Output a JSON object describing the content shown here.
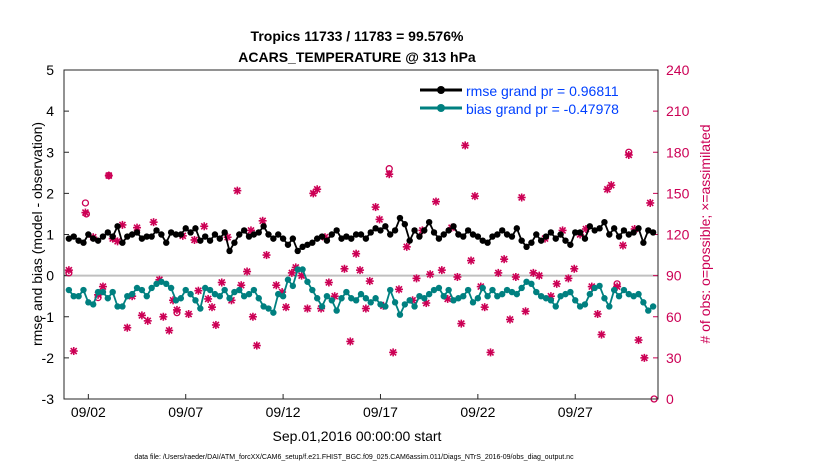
{
  "chart_data": {
    "type": "line",
    "title": "Tropics 11733 / 11783 = 99.576%",
    "subtitle": "ACARS_TEMPERATURE @ 313 hPa",
    "xlabel": "Sep.01,2016 00:00:00 start",
    "ylabel": "rmse and bias (model - observation)",
    "ylabel_right": "# of obs: o=possible; ×=assimilated",
    "footer": "data file: /Users/raeder/DAI/ATM_forcXX/CAM6_setup/f.e21.FHIST_BGC.f09_025.CAM6assim.011/Diags_NTrS_2016-09/obs_diag_output.nc",
    "xlim": [
      0.5,
      31.0
    ],
    "ylim": [
      -3,
      5
    ],
    "ylim_right": [
      0,
      240
    ],
    "x_tick_values": [
      1.75,
      6.75,
      11.75,
      16.75,
      21.75,
      26.75
    ],
    "x_tick_labels": [
      "09/02",
      "09/07",
      "09/12",
      "09/17",
      "09/22",
      "09/27"
    ],
    "y_ticks": [
      -3,
      -2,
      -1,
      0,
      1,
      2,
      3,
      4,
      5
    ],
    "y_ticks_right": [
      0,
      30,
      60,
      90,
      120,
      150,
      180,
      210,
      240
    ],
    "legend": [
      {
        "label": "rmse grand pr = 0.96811",
        "color": "#000000"
      },
      {
        "label": "bias grand pr = -0.47978",
        "color": "#008080"
      }
    ],
    "colors": {
      "rmse": "#000000",
      "bias": "#008080",
      "counts": "#cc0055",
      "zero_line": "#c0c0c0",
      "legend_text": "#0040ff"
    },
    "x": [
      0.75,
      1.0,
      1.25,
      1.5,
      1.75,
      2.0,
      2.25,
      2.5,
      2.75,
      3.0,
      3.25,
      3.5,
      3.75,
      4.0,
      4.25,
      4.5,
      4.75,
      5.0,
      5.25,
      5.5,
      5.75,
      6.0,
      6.25,
      6.5,
      6.75,
      7.0,
      7.25,
      7.5,
      7.75,
      8.0,
      8.25,
      8.5,
      8.75,
      9.0,
      9.25,
      9.5,
      9.75,
      10.0,
      10.25,
      10.5,
      10.75,
      11.0,
      11.25,
      11.5,
      11.75,
      12.0,
      12.25,
      12.5,
      12.75,
      13.0,
      13.25,
      13.5,
      13.75,
      14.0,
      14.25,
      14.5,
      14.75,
      15.0,
      15.25,
      15.5,
      15.75,
      16.0,
      16.25,
      16.5,
      16.75,
      17.0,
      17.25,
      17.5,
      17.75,
      18.0,
      18.25,
      18.5,
      18.75,
      19.0,
      19.25,
      19.5,
      19.75,
      20.0,
      20.25,
      20.5,
      20.75,
      21.0,
      21.25,
      21.5,
      21.75,
      22.0,
      22.25,
      22.5,
      22.75,
      23.0,
      23.25,
      23.5,
      23.75,
      24.0,
      24.25,
      24.5,
      24.75,
      25.0,
      25.25,
      25.5,
      25.75,
      26.0,
      26.25,
      26.5,
      26.75,
      27.0,
      27.25,
      27.5,
      27.75,
      28.0,
      28.25,
      28.5,
      28.75,
      29.0,
      29.25,
      29.5,
      29.75,
      30.0,
      30.25,
      30.5,
      30.75
    ],
    "series": [
      {
        "name": "rmse",
        "values": [
          0.9,
          0.95,
          0.85,
          0.8,
          1.0,
          0.9,
          0.85,
          0.95,
          1.05,
          0.95,
          1.2,
          0.8,
          0.95,
          1.0,
          1.05,
          0.9,
          0.95,
          0.95,
          1.1,
          1.0,
          0.8,
          1.05,
          1.0,
          1.0,
          1.15,
          1.05,
          1.15,
          0.85,
          0.95,
          0.85,
          1.0,
          0.9,
          1.05,
          0.6,
          0.8,
          1.0,
          1.1,
          0.95,
          1.0,
          1.05,
          1.2,
          1.0,
          0.9,
          1.0,
          0.9,
          0.75,
          0.9,
          0.6,
          0.7,
          0.75,
          0.8,
          0.9,
          0.95,
          0.85,
          1.0,
          1.1,
          0.9,
          0.95,
          0.9,
          1.0,
          1.0,
          0.9,
          1.05,
          1.15,
          1.1,
          1.2,
          1.0,
          1.1,
          1.4,
          1.25,
          0.85,
          1.1,
          0.95,
          1.1,
          1.3,
          1.05,
          0.9,
          1.0,
          1.1,
          1.2,
          1.0,
          0.95,
          1.1,
          1.0,
          0.95,
          0.85,
          0.8,
          0.95,
          1.0,
          1.1,
          1.0,
          0.95,
          1.15,
          0.85,
          0.7,
          0.8,
          1.0,
          0.85,
          0.95,
          1.05,
          0.9,
          1.0,
          0.85,
          0.75,
          1.05,
          1.05,
          0.9,
          1.2,
          1.1,
          1.15,
          1.3,
          1.0,
          1.15,
          0.95,
          1.1,
          1.0,
          1.05,
          1.15,
          0.8,
          1.1,
          1.05
        ]
      },
      {
        "name": "bias",
        "values": [
          -0.35,
          -0.5,
          -0.5,
          -0.35,
          -0.65,
          -0.7,
          -0.4,
          -0.4,
          -0.55,
          -0.4,
          -0.75,
          -0.75,
          -0.5,
          -0.45,
          -0.3,
          -0.35,
          -0.5,
          -0.3,
          -0.2,
          -0.15,
          -0.2,
          -0.3,
          -0.6,
          -0.55,
          -0.35,
          -0.45,
          -0.6,
          -0.8,
          -0.3,
          -0.35,
          -0.45,
          -0.5,
          -0.35,
          -0.55,
          -0.4,
          -0.35,
          -0.5,
          -0.45,
          -0.35,
          -0.55,
          -0.75,
          -0.8,
          -0.9,
          -0.45,
          -0.5,
          -0.1,
          -0.25,
          0.15,
          0.15,
          -0.15,
          -0.35,
          -0.55,
          -0.75,
          -0.5,
          -0.6,
          -0.85,
          -0.55,
          -0.4,
          -0.55,
          -0.6,
          -0.45,
          -0.55,
          -0.65,
          -0.55,
          -0.7,
          -0.75,
          -0.35,
          -0.65,
          -0.95,
          -0.7,
          -0.6,
          -0.75,
          -0.5,
          -0.55,
          -0.45,
          -0.35,
          -0.3,
          -0.5,
          -0.35,
          -0.6,
          -0.55,
          -0.5,
          -0.35,
          -0.65,
          -0.55,
          -0.3,
          -0.5,
          -0.35,
          -0.5,
          -0.45,
          -0.35,
          -0.4,
          -0.45,
          -0.3,
          -0.15,
          -0.2,
          -0.4,
          -0.5,
          -0.55,
          -0.6,
          -0.75,
          -0.5,
          -0.45,
          -0.4,
          -0.6,
          -0.75,
          -0.7,
          -0.45,
          -0.3,
          -0.25,
          -0.55,
          -0.75,
          -0.35,
          -0.5,
          -0.35,
          -0.45,
          -0.5,
          -0.45,
          -0.65,
          -0.85,
          -0.75
        ]
      }
    ],
    "obs_possible": [
      {
        "x": 0.75,
        "y": 92
      },
      {
        "x": 1.6,
        "y": 143
      },
      {
        "x": 1.65,
        "y": 135
      },
      {
        "x": 2.25,
        "y": 74
      },
      {
        "x": 2.8,
        "y": 163
      },
      {
        "x": 6.3,
        "y": 63
      },
      {
        "x": 17.2,
        "y": 168
      },
      {
        "x": 29.5,
        "y": 180
      },
      {
        "x": 28.9,
        "y": 84
      },
      {
        "x": 30.8,
        "y": 0
      }
    ],
    "obs_assimilated": [
      {
        "x": 0.75,
        "y": 94
      },
      {
        "x": 1.0,
        "y": 35
      },
      {
        "x": 1.6,
        "y": 136
      },
      {
        "x": 2.0,
        "y": 118
      },
      {
        "x": 2.25,
        "y": 76
      },
      {
        "x": 2.5,
        "y": 82
      },
      {
        "x": 2.8,
        "y": 163
      },
      {
        "x": 3.0,
        "y": 117
      },
      {
        "x": 3.25,
        "y": 115
      },
      {
        "x": 3.5,
        "y": 127
      },
      {
        "x": 3.75,
        "y": 52
      },
      {
        "x": 4.0,
        "y": 75
      },
      {
        "x": 4.25,
        "y": 125
      },
      {
        "x": 4.5,
        "y": 61
      },
      {
        "x": 4.8,
        "y": 57
      },
      {
        "x": 5.1,
        "y": 129
      },
      {
        "x": 5.4,
        "y": 87
      },
      {
        "x": 5.6,
        "y": 60
      },
      {
        "x": 5.9,
        "y": 50
      },
      {
        "x": 6.1,
        "y": 72
      },
      {
        "x": 6.3,
        "y": 65
      },
      {
        "x": 6.6,
        "y": 119
      },
      {
        "x": 6.9,
        "y": 62
      },
      {
        "x": 7.2,
        "y": 116
      },
      {
        "x": 7.4,
        "y": 79
      },
      {
        "x": 7.7,
        "y": 126
      },
      {
        "x": 7.9,
        "y": 73
      },
      {
        "x": 8.1,
        "y": 67
      },
      {
        "x": 8.3,
        "y": 54
      },
      {
        "x": 8.6,
        "y": 85
      },
      {
        "x": 8.9,
        "y": 118
      },
      {
        "x": 9.1,
        "y": 72
      },
      {
        "x": 9.4,
        "y": 152
      },
      {
        "x": 9.6,
        "y": 83
      },
      {
        "x": 9.9,
        "y": 93
      },
      {
        "x": 10.1,
        "y": 123
      },
      {
        "x": 10.2,
        "y": 60
      },
      {
        "x": 10.4,
        "y": 39
      },
      {
        "x": 10.7,
        "y": 130
      },
      {
        "x": 10.9,
        "y": 105
      },
      {
        "x": 11.4,
        "y": 83
      },
      {
        "x": 11.7,
        "y": 78
      },
      {
        "x": 11.9,
        "y": 67
      },
      {
        "x": 12.2,
        "y": 92
      },
      {
        "x": 12.4,
        "y": 96
      },
      {
        "x": 12.7,
        "y": 90
      },
      {
        "x": 13.0,
        "y": 66
      },
      {
        "x": 13.3,
        "y": 150
      },
      {
        "x": 13.5,
        "y": 153
      },
      {
        "x": 13.7,
        "y": 66
      },
      {
        "x": 13.9,
        "y": 118
      },
      {
        "x": 14.1,
        "y": 85
      },
      {
        "x": 14.4,
        "y": 75
      },
      {
        "x": 14.9,
        "y": 95
      },
      {
        "x": 15.2,
        "y": 42
      },
      {
        "x": 15.5,
        "y": 106
      },
      {
        "x": 15.7,
        "y": 94
      },
      {
        "x": 16.0,
        "y": 66
      },
      {
        "x": 16.2,
        "y": 86
      },
      {
        "x": 16.5,
        "y": 140
      },
      {
        "x": 16.7,
        "y": 131
      },
      {
        "x": 16.9,
        "y": 68
      },
      {
        "x": 17.2,
        "y": 164
      },
      {
        "x": 17.4,
        "y": 34
      },
      {
        "x": 17.7,
        "y": 80
      },
      {
        "x": 18.1,
        "y": 111
      },
      {
        "x": 18.4,
        "y": 72
      },
      {
        "x": 18.6,
        "y": 88
      },
      {
        "x": 18.9,
        "y": 123
      },
      {
        "x": 19.1,
        "y": 70
      },
      {
        "x": 19.3,
        "y": 91
      },
      {
        "x": 19.6,
        "y": 144
      },
      {
        "x": 19.9,
        "y": 94
      },
      {
        "x": 20.2,
        "y": 73
      },
      {
        "x": 20.4,
        "y": 125
      },
      {
        "x": 20.7,
        "y": 89
      },
      {
        "x": 20.9,
        "y": 55
      },
      {
        "x": 21.1,
        "y": 185
      },
      {
        "x": 21.4,
        "y": 101
      },
      {
        "x": 21.6,
        "y": 148
      },
      {
        "x": 21.9,
        "y": 82
      },
      {
        "x": 22.1,
        "y": 67
      },
      {
        "x": 22.4,
        "y": 34
      },
      {
        "x": 22.8,
        "y": 92
      },
      {
        "x": 23.1,
        "y": 102
      },
      {
        "x": 23.4,
        "y": 58
      },
      {
        "x": 23.7,
        "y": 89
      },
      {
        "x": 24.0,
        "y": 147
      },
      {
        "x": 24.2,
        "y": 64
      },
      {
        "x": 24.6,
        "y": 92
      },
      {
        "x": 24.9,
        "y": 90
      },
      {
        "x": 25.2,
        "y": 117
      },
      {
        "x": 25.5,
        "y": 75
      },
      {
        "x": 25.8,
        "y": 84
      },
      {
        "x": 26.1,
        "y": 123
      },
      {
        "x": 26.4,
        "y": 88
      },
      {
        "x": 26.7,
        "y": 95
      },
      {
        "x": 27.0,
        "y": 120
      },
      {
        "x": 27.3,
        "y": 124
      },
      {
        "x": 27.6,
        "y": 82
      },
      {
        "x": 27.9,
        "y": 62
      },
      {
        "x": 28.1,
        "y": 47
      },
      {
        "x": 28.4,
        "y": 153
      },
      {
        "x": 28.6,
        "y": 156
      },
      {
        "x": 28.9,
        "y": 82
      },
      {
        "x": 29.2,
        "y": 112
      },
      {
        "x": 29.5,
        "y": 178
      },
      {
        "x": 29.8,
        "y": 124
      },
      {
        "x": 30.0,
        "y": 43
      },
      {
        "x": 30.3,
        "y": 30
      },
      {
        "x": 30.6,
        "y": 143
      }
    ]
  }
}
